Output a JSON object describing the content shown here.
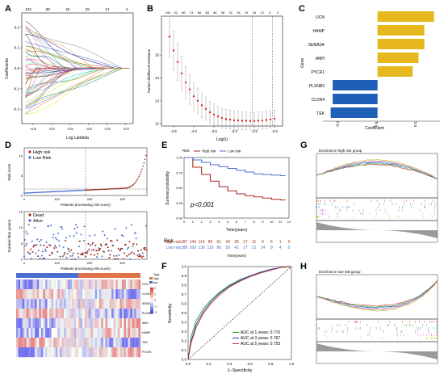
{
  "panels": {
    "A": {
      "letter": "A",
      "xlabel": "Log Lambda",
      "ylabel": "Coefficients",
      "top_ticks": [
        "104",
        "80",
        "45",
        "29",
        "14",
        "4"
      ],
      "x_ticks": [
        "-4.5",
        "-4.0",
        "-3.5",
        "-3.0",
        "-2.5",
        "-2.0"
      ],
      "y_ticks": [
        "-0.2",
        "-0.1",
        "0.0",
        "0.1",
        "0.2"
      ],
      "xlim": [
        -4.8,
        -1.8
      ],
      "ylim": [
        -0.27,
        0.27
      ]
    },
    "B": {
      "letter": "B",
      "xlabel": "Log(λ)",
      "ylabel": "Partial Likelihood Deviance",
      "top_ticks": [
        "104",
        "91",
        "86",
        "74",
        "66",
        "58",
        "46",
        "38",
        "31",
        "26",
        "19",
        "16",
        "12",
        "4",
        "3"
      ],
      "x_ticks": [
        "-4.5",
        "-4.0",
        "-3.5",
        "-3.0",
        "-2.5",
        "-2.0"
      ],
      "y_ticks": [
        "12",
        "13",
        "14",
        "15"
      ],
      "xlim": [
        -4.8,
        -1.8
      ],
      "ylim": [
        11.9,
        16.7
      ],
      "vlines": [
        -2.55,
        -2.05
      ]
    },
    "C": {
      "letter": "C",
      "xlabel": "Coefficient",
      "ylabel": "Gene",
      "x_ticks": [
        "-0.2",
        "0.0",
        "0.2"
      ],
      "xlim": [
        -0.28,
        0.32
      ],
      "pos_color": "#e6b81e",
      "neg_color": "#1f5fb8"
    },
    "D": {
      "letter": "D",
      "top_ylabel": "Risk score",
      "top_xlabel": "Patients (increasing risk score)",
      "legend1": [
        "High risk",
        "Low Risk"
      ],
      "mid_ylabel": "Survival time (years)",
      "mid_xlabel": "Patients (increasing risk score)",
      "legend2": [
        "Dead",
        "Alive"
      ],
      "x_ticks": [
        "0",
        "100",
        "200",
        "300"
      ],
      "risk_y_ticks": [
        "0",
        "5",
        "10"
      ],
      "surv_y_ticks": [
        "0",
        "5",
        "10",
        "15"
      ],
      "heat_genes": [
        "UCN",
        "CLDN4",
        "SEMA3A",
        "PLXNB3",
        "AMH",
        "HAMP",
        "TEK",
        "PYCR1"
      ],
      "heat_legend": [
        "2",
        "1",
        "0",
        "-1",
        "-2"
      ],
      "heat_type_labels": [
        "Type",
        "high",
        "low"
      ],
      "high_color": "#a52a1b",
      "low_color": "#4a6fcf"
    },
    "E": {
      "letter": "E",
      "legend_label": "Risk",
      "legend_items": [
        "High risk",
        "Low risk"
      ],
      "ylabel": "Survival probability",
      "xlabel": "Time(years)",
      "pvalue": "p<0.001",
      "x_ticks": [
        "0",
        "1",
        "2",
        "3",
        "4",
        "5",
        "6",
        "7",
        "8",
        "9",
        "10",
        "11",
        "12"
      ],
      "y_ticks": [
        "0.00",
        "0.25",
        "0.50",
        "0.75",
        "1.00"
      ],
      "risk_table_title": "Risk",
      "risk_rows": [
        {
          "name": "High risk",
          "counts": [
            "187",
            "144",
            "114",
            "86",
            "61",
            "43",
            "28",
            "17",
            "11",
            "6",
            "5",
            "1",
            "0"
          ],
          "color": "#a52a1b"
        },
        {
          "name": "Low risk",
          "counts": [
            "188",
            "160",
            "136",
            "110",
            "80",
            "59",
            "41",
            "27",
            "21",
            "14",
            "8",
            "4",
            "0"
          ],
          "color": "#4a6fcf"
        }
      ],
      "risk_xlabel": "Time(years)"
    },
    "F": {
      "letter": "F",
      "xlabel": "1−Specificity",
      "ylabel": "Sensitivity",
      "x_ticks": [
        "0.0",
        "0.2",
        "0.4",
        "0.6",
        "0.8",
        "1.0"
      ],
      "y_ticks": [
        "0.0",
        "0.1",
        "0.2",
        "0.3",
        "0.4",
        "0.5",
        "0.6",
        "0.7",
        "0.8",
        "0.9",
        "1.0"
      ],
      "legend": [
        {
          "label": "AUC at 1 years: 0.776",
          "color": "#2ca02c"
        },
        {
          "label": "AUC at 3 years: 0.767",
          "color": "#1f3fbf"
        },
        {
          "label": "AUC at 5 years: 0.755",
          "color": "#c0392b"
        }
      ]
    },
    "G": {
      "letter": "G",
      "title": "Enriched in high risk group"
    },
    "H": {
      "letter": "H",
      "title": "Enriched in low risk group"
    }
  },
  "chart_data": [
    {
      "type": "line",
      "panel": "A",
      "title": "",
      "xlabel": "Log Lambda",
      "ylabel": "Coefficients",
      "xlim": [
        -4.8,
        -1.8
      ],
      "ylim": [
        -0.27,
        0.27
      ],
      "note": "LASSO coefficient paths converging to 0 as log lambda increases"
    },
    {
      "type": "scatter",
      "panel": "B",
      "xlabel": "Log(λ)",
      "ylabel": "Partial Likelihood Deviance",
      "x": [
        -4.6,
        -4.5,
        -4.4,
        -4.3,
        -4.2,
        -4.1,
        -4.0,
        -3.9,
        -3.8,
        -3.7,
        -3.6,
        -3.5,
        -3.4,
        -3.3,
        -3.2,
        -3.1,
        -3.0,
        -2.9,
        -2.8,
        -2.7,
        -2.6,
        -2.5,
        -2.4,
        -2.3,
        -2.2,
        -2.1,
        -2.0
      ],
      "y": [
        15.8,
        15.2,
        14.7,
        14.2,
        13.8,
        13.5,
        13.2,
        13.0,
        12.8,
        12.65,
        12.5,
        12.4,
        12.32,
        12.25,
        12.2,
        12.18,
        12.15,
        12.14,
        12.13,
        12.13,
        12.12,
        12.12,
        12.13,
        12.14,
        12.16,
        12.19,
        12.22
      ],
      "err": [
        0.9,
        0.85,
        0.8,
        0.75,
        0.7,
        0.65,
        0.6,
        0.56,
        0.52,
        0.5,
        0.48,
        0.46,
        0.44,
        0.43,
        0.42,
        0.41,
        0.4,
        0.4,
        0.39,
        0.39,
        0.38,
        0.38,
        0.38,
        0.38,
        0.38,
        0.38,
        0.38
      ],
      "xlim": [
        -4.8,
        -1.8
      ],
      "ylim": [
        11.9,
        16.7
      ]
    },
    {
      "type": "bar",
      "panel": "C",
      "orientation": "horizontal",
      "xlabel": "Coefficient",
      "ylabel": "Gene",
      "categories": [
        "UCN",
        "HAMP",
        "SEMA3A",
        "AMH",
        "PYCR1",
        "PLXNB3",
        "CLDN4",
        "TEK"
      ],
      "values": [
        0.29,
        0.24,
        0.24,
        0.21,
        0.18,
        -0.23,
        -0.23,
        -0.24
      ],
      "xlim": [
        -0.28,
        0.32
      ]
    },
    {
      "type": "line",
      "panel": "E",
      "xlabel": "Time(years)",
      "ylabel": "Survival probability",
      "series": [
        {
          "name": "High risk",
          "x": [
            0,
            1,
            2,
            3,
            4,
            5,
            6,
            7,
            8,
            9,
            10,
            11
          ],
          "values": [
            1.0,
            0.84,
            0.72,
            0.61,
            0.52,
            0.45,
            0.4,
            0.37,
            0.35,
            0.33,
            0.31,
            0.3
          ]
        },
        {
          "name": "Low risk",
          "x": [
            0,
            1,
            2,
            3,
            4,
            5,
            6,
            7,
            8,
            9,
            10,
            11
          ],
          "values": [
            1.0,
            0.96,
            0.92,
            0.88,
            0.85,
            0.82,
            0.79,
            0.76,
            0.73,
            0.72,
            0.71,
            0.7
          ]
        }
      ],
      "xlim": [
        0,
        12
      ],
      "ylim": [
        0,
        1
      ]
    },
    {
      "type": "line",
      "panel": "F",
      "xlabel": "1−Specificity",
      "ylabel": "Sensitivity",
      "series": [
        {
          "name": "AUC at 1 years: 0.776",
          "x": [
            0,
            0.03,
            0.08,
            0.15,
            0.22,
            0.3,
            0.4,
            0.5,
            0.6,
            0.7,
            0.8,
            0.9,
            1.0
          ],
          "values": [
            0,
            0.25,
            0.42,
            0.55,
            0.64,
            0.72,
            0.8,
            0.86,
            0.9,
            0.94,
            0.97,
            0.99,
            1.0
          ]
        },
        {
          "name": "AUC at 3 years: 0.767",
          "x": [
            0,
            0.03,
            0.08,
            0.15,
            0.22,
            0.3,
            0.4,
            0.5,
            0.6,
            0.7,
            0.8,
            0.9,
            1.0
          ],
          "values": [
            0,
            0.2,
            0.38,
            0.52,
            0.62,
            0.71,
            0.79,
            0.85,
            0.9,
            0.94,
            0.97,
            0.99,
            1.0
          ]
        },
        {
          "name": "AUC at 5 years: 0.755",
          "x": [
            0,
            0.03,
            0.08,
            0.15,
            0.22,
            0.3,
            0.4,
            0.5,
            0.6,
            0.7,
            0.8,
            0.9,
            1.0
          ],
          "values": [
            0,
            0.18,
            0.35,
            0.5,
            0.6,
            0.69,
            0.78,
            0.84,
            0.89,
            0.93,
            0.96,
            0.99,
            1.0
          ]
        }
      ],
      "xlim": [
        0,
        1
      ],
      "ylim": [
        0,
        1
      ]
    }
  ]
}
